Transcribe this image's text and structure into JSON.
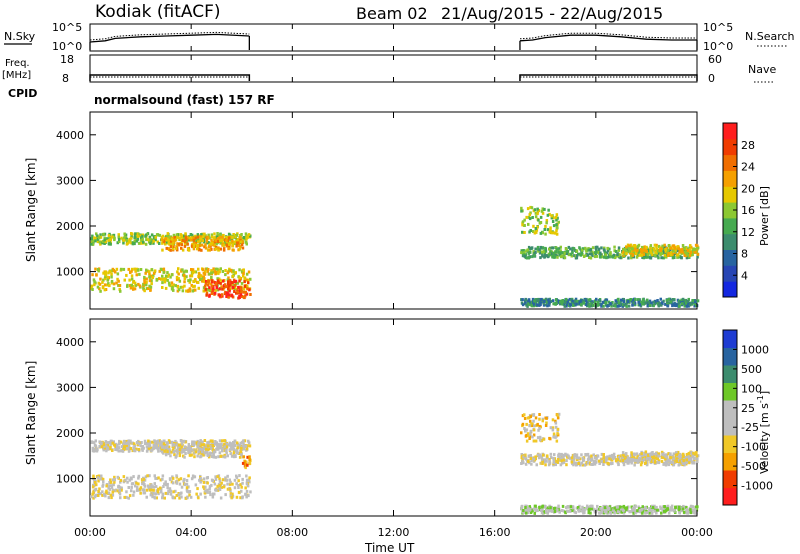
{
  "header": {
    "radar": "Kodiak (fitACF)",
    "beam": "Beam 02",
    "dates": "21/Aug/2015 - 22/Aug/2015"
  },
  "labels": {
    "nsky": "N.Sky",
    "nsearch": "N.Search",
    "freq": "Freq.",
    "freq_unit": "[MHz]",
    "nave": "Nave",
    "cpid": "CPID",
    "cpid_name": "normalsound (fast) 157 RF"
  },
  "colors": {
    "power_bar": [
      "#1428e0",
      "#2846b4",
      "#2864a0",
      "#3c8c6e",
      "#46aa50",
      "#8cc832",
      "#e6c800",
      "#f5a000",
      "#f06e00",
      "#f03c00",
      "#ff1e1e"
    ],
    "velocity_bar": [
      "#ff1e1e",
      "#f03c00",
      "#f5a000",
      "#f0c828",
      "#bebebe",
      "#bebebe",
      "#6ec828",
      "#3c8c6e",
      "#2864a0",
      "#1e3cd2"
    ]
  },
  "chart_data": [
    {
      "type": "line",
      "name": "noise-panel",
      "left_axis": {
        "label": "N.Sky",
        "ticks": [
          "10^5",
          "10^0"
        ]
      },
      "right_axis": {
        "label": "N.Search",
        "ticks": [
          "10^5",
          "10^0"
        ]
      },
      "segments": [
        {
          "x_hours": [
            0,
            0.6,
            1,
            2,
            3,
            4,
            5,
            6.3
          ],
          "y_log": [
            1.5,
            1.8,
            2.4,
            2.8,
            3.0,
            3.2,
            3.4,
            3.0
          ]
        },
        {
          "x_hours": [
            17,
            17.5,
            18,
            19,
            20,
            21,
            22,
            23,
            24
          ],
          "y_log": [
            1.8,
            2.0,
            2.6,
            3.2,
            3.2,
            2.8,
            2.2,
            2.0,
            2.0
          ]
        }
      ]
    },
    {
      "type": "line",
      "name": "freq-nave-panel",
      "left_axis": {
        "label": "Freq. [MHz]",
        "ticks": [
          "18",
          "8"
        ]
      },
      "right_axis": {
        "label": "Nave",
        "ticks": [
          "60",
          "0"
        ]
      },
      "segments": [
        {
          "x_hours": [
            0,
            6.3
          ],
          "freq": [
            10.5,
            10.5
          ]
        },
        {
          "x_hours": [
            17,
            24
          ],
          "freq": [
            10.5,
            10.5
          ]
        }
      ]
    },
    {
      "type": "heatmap",
      "name": "power-panel",
      "ylabel": "Slant Range [km]",
      "yticks": [
        "4000",
        "3000",
        "2000",
        "1000"
      ],
      "colorbar_label": "Power [dB]",
      "colorbar_ticks": [
        "28",
        "24",
        "20",
        "16",
        "12",
        "8",
        "4"
      ],
      "bands": [
        {
          "t0": 0,
          "t1": 6.3,
          "r": 1750,
          "spread": 120,
          "level": 5
        },
        {
          "t0": 2.8,
          "t1": 6.0,
          "r": 1650,
          "spread": 150,
          "level": 7
        },
        {
          "t0": 0,
          "t1": 6.3,
          "r": 850,
          "spread": 250,
          "level": 6
        },
        {
          "t0": 4.5,
          "t1": 6.3,
          "r": 650,
          "spread": 200,
          "level": 9
        },
        {
          "t0": 17,
          "t1": 24,
          "r": 1450,
          "spread": 120,
          "level": 4
        },
        {
          "t0": 17,
          "t1": 18.5,
          "r": 2150,
          "spread": 300,
          "level": 5
        },
        {
          "t0": 21,
          "t1": 24,
          "r": 1500,
          "spread": 120,
          "level": 6
        },
        {
          "t0": 17,
          "t1": 24,
          "r": 350,
          "spread": 80,
          "level": 3
        }
      ]
    },
    {
      "type": "heatmap",
      "name": "velocity-panel",
      "ylabel": "Slant Range [km]",
      "yticks": [
        "4000",
        "3000",
        "2000",
        "1000"
      ],
      "colorbar_label": "Velocity [m s",
      "colorbar_label_sup": "-1",
      "colorbar_label_end": "]",
      "colorbar_ticks": [
        "1000",
        "500",
        "100",
        "25",
        "-25",
        "-100",
        "-500",
        "-1000"
      ],
      "bands": [
        {
          "t0": 0,
          "t1": 6.3,
          "r": 1750,
          "spread": 120,
          "level": 4
        },
        {
          "t0": 2.8,
          "t1": 6.0,
          "r": 1650,
          "spread": 150,
          "level": 4
        },
        {
          "t0": 0,
          "t1": 6.3,
          "r": 850,
          "spread": 250,
          "level": 4
        },
        {
          "t0": 6.0,
          "t1": 6.3,
          "r": 1400,
          "spread": 150,
          "level": 2
        },
        {
          "t0": 17,
          "t1": 24,
          "r": 1450,
          "spread": 120,
          "level": 4
        },
        {
          "t0": 17,
          "t1": 18.5,
          "r": 2150,
          "spread": 300,
          "level": 3
        },
        {
          "t0": 21,
          "t1": 24,
          "r": 1500,
          "spread": 120,
          "level": 4
        },
        {
          "t0": 17,
          "t1": 24,
          "r": 350,
          "spread": 80,
          "level": 5
        }
      ]
    }
  ],
  "xaxis": {
    "ticks": [
      "00:00",
      "04:00",
      "08:00",
      "12:00",
      "16:00",
      "20:00",
      "00:00"
    ],
    "label": "Time UT",
    "range_hours": [
      0,
      24
    ]
  },
  "yrange_km": [
    180,
    4500
  ]
}
